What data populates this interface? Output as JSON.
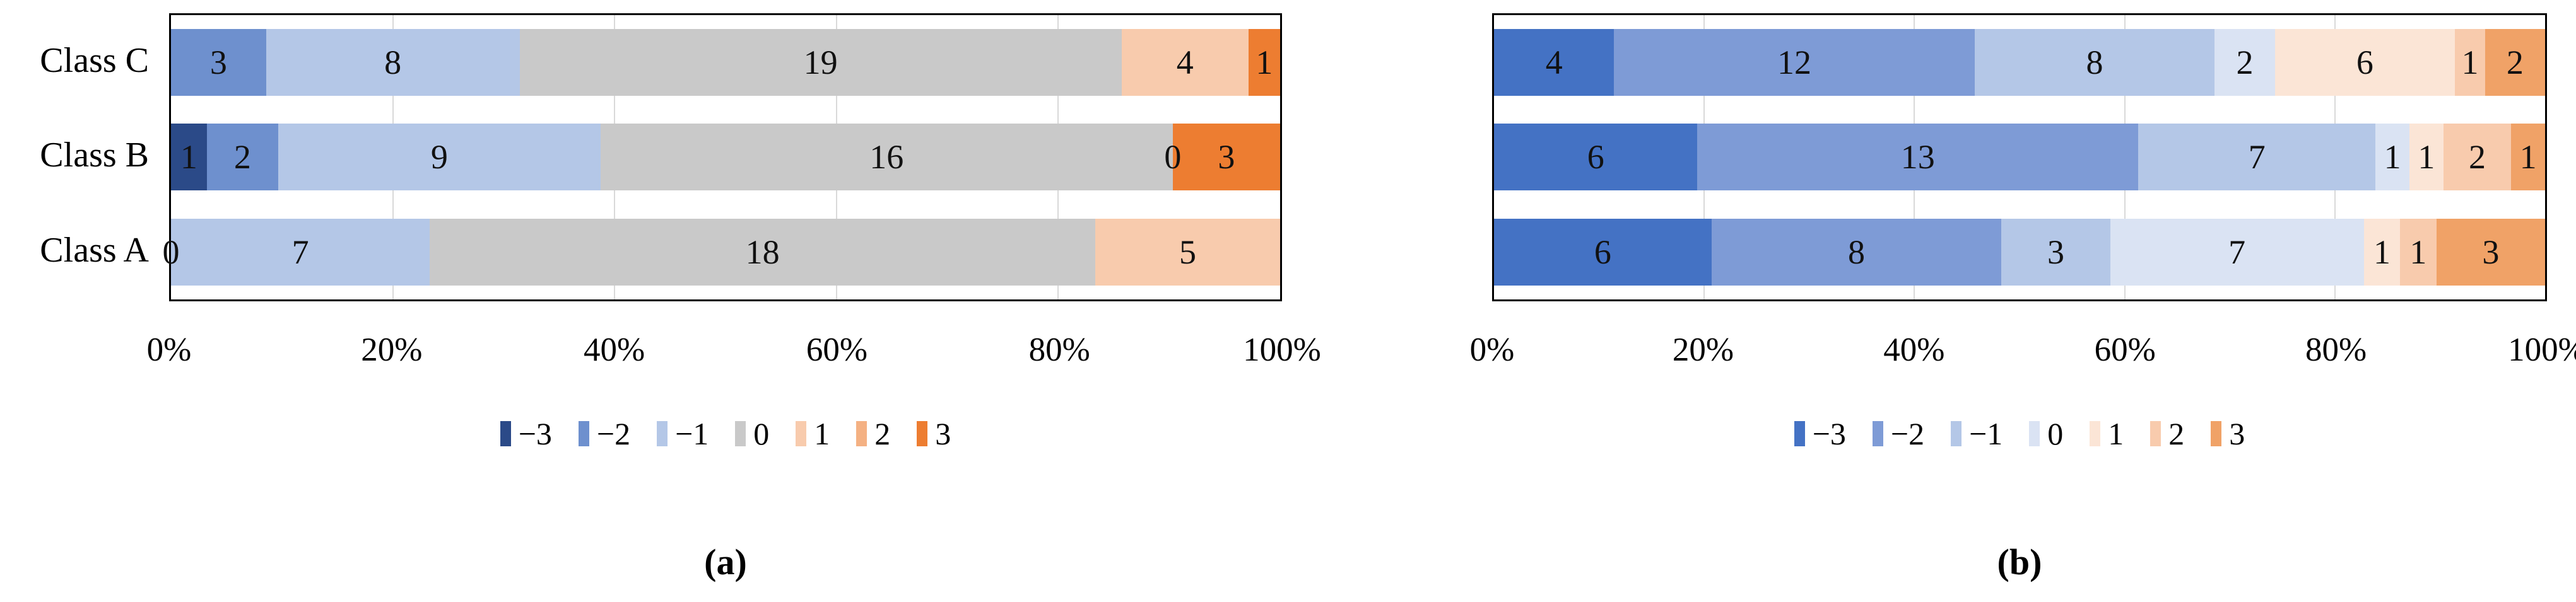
{
  "figure": {
    "caption_a": "(a)",
    "caption_b": "(b)"
  },
  "chart_data": [
    {
      "id": "a",
      "type": "bar",
      "variant": "100%-stacked-horizontal-likert",
      "categories": [
        "Class C",
        "Class B",
        "Class A"
      ],
      "x_ticks": [
        "0%",
        "20%",
        "40%",
        "60%",
        "80%",
        "100%"
      ],
      "gridlines_pct": [
        20,
        40,
        60,
        80
      ],
      "xlim": [
        0,
        100
      ],
      "grid": true,
      "legend_position": "bottom",
      "series": [
        {
          "name": "−3",
          "color": "#2B4A88",
          "values": [
            null,
            1,
            0
          ]
        },
        {
          "name": "−2",
          "color": "#6E90CE",
          "values": [
            3,
            2,
            null
          ]
        },
        {
          "name": "−1",
          "color": "#B4C7E7",
          "values": [
            8,
            9,
            7
          ]
        },
        {
          "name": "0",
          "color": "#C9C9C9",
          "values": [
            19,
            16,
            18
          ]
        },
        {
          "name": "1",
          "color": "#F8CBAD",
          "values": [
            4,
            0,
            5
          ]
        },
        {
          "name": "2",
          "color": "#F4B183",
          "values": [
            null,
            null,
            null
          ]
        },
        {
          "name": "3",
          "color": "#ED7D31",
          "values": [
            1,
            3,
            null
          ]
        }
      ]
    },
    {
      "id": "b",
      "type": "bar",
      "variant": "100%-stacked-horizontal-likert",
      "categories": [
        "",
        "",
        ""
      ],
      "x_ticks": [
        "0%",
        "20%",
        "40%",
        "60%",
        "80%",
        "100%"
      ],
      "gridlines_pct": [
        20,
        40,
        60,
        80
      ],
      "xlim": [
        0,
        100
      ],
      "grid": true,
      "legend_position": "bottom",
      "series": [
        {
          "name": "−3",
          "color": "#4472C4",
          "values": [
            4,
            6,
            6
          ]
        },
        {
          "name": "−2",
          "color": "#7E9BD6",
          "values": [
            12,
            13,
            8
          ]
        },
        {
          "name": "−1",
          "color": "#B4C7E7",
          "values": [
            8,
            7,
            3
          ]
        },
        {
          "name": "0",
          "color": "#DAE3F3",
          "values": [
            2,
            1,
            7
          ]
        },
        {
          "name": "1",
          "color": "#FBE5D6",
          "values": [
            6,
            1,
            1
          ]
        },
        {
          "name": "2",
          "color": "#F8CBAD",
          "values": [
            1,
            2,
            1
          ]
        },
        {
          "name": "3",
          "color": "#F0A267",
          "values": [
            2,
            1,
            3
          ]
        }
      ]
    }
  ]
}
